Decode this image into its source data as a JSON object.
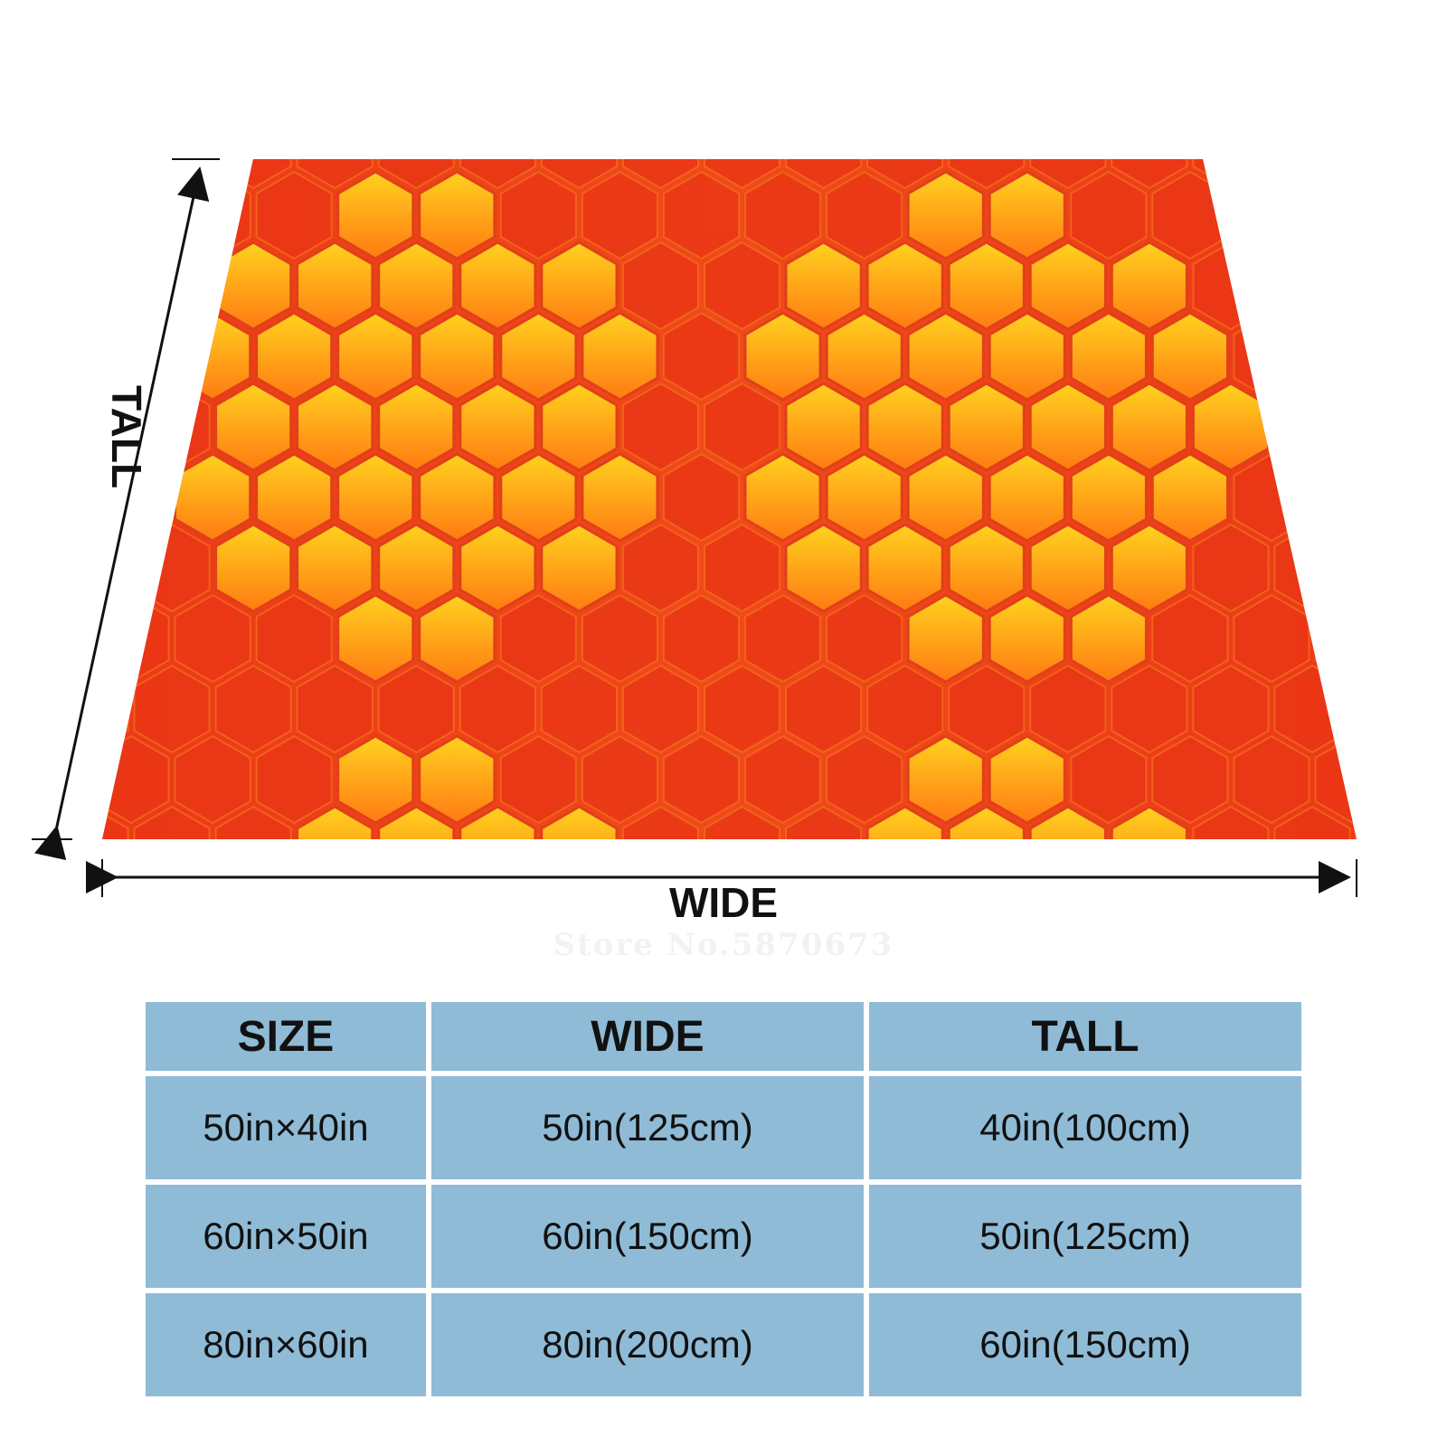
{
  "dimensions": {
    "tall_label": "TALL",
    "wide_label": "WIDE"
  },
  "watermark": "Store No.5870673",
  "blanket_colors": {
    "background": "#e8311a",
    "hex_light": "#ffd21f",
    "hex_dark": "#ff7a12"
  },
  "table": {
    "headers": [
      "SIZE",
      "WIDE",
      "TALL"
    ],
    "rows": [
      [
        "50in×40in",
        "50in(125cm)",
        "40in(100cm)"
      ],
      [
        "60in×50in",
        "60in(150cm)",
        "50in(125cm)"
      ],
      [
        "80in×60in",
        "80in(200cm)",
        "60in(150cm)"
      ]
    ],
    "cell_color": "#8fbbd6"
  }
}
